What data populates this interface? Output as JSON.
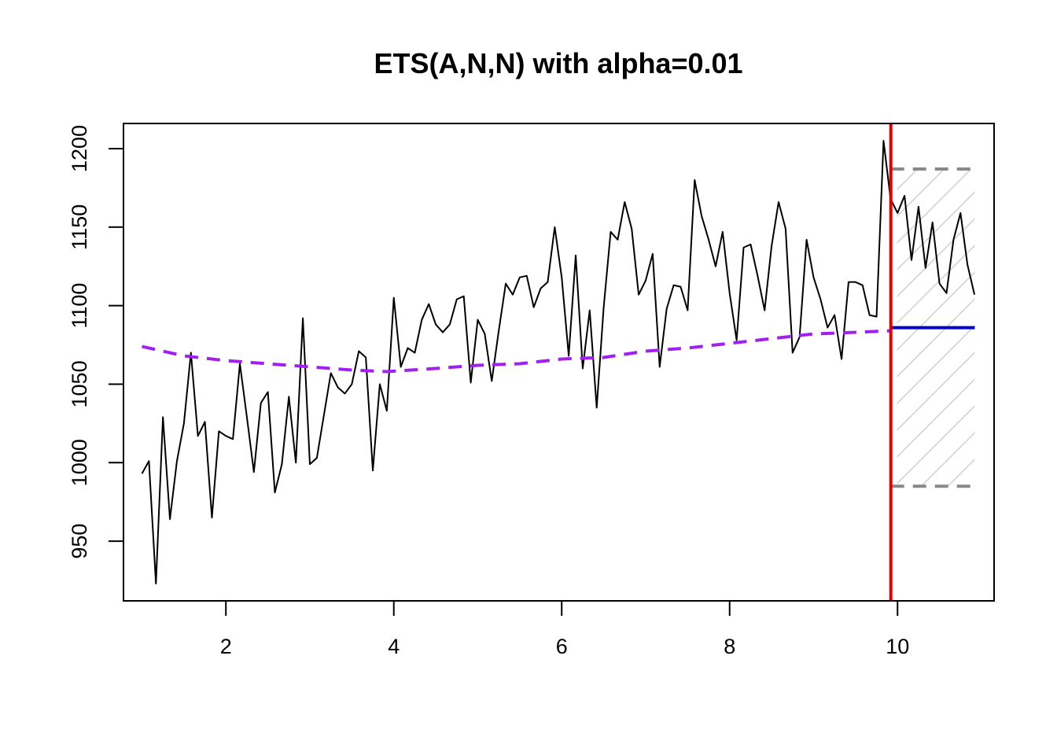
{
  "chart_data": {
    "type": "line",
    "title": "ETS(A,N,N) with alpha=0.01",
    "xlabel": "",
    "ylabel": "",
    "xlim": [
      0.78,
      11.15
    ],
    "ylim": [
      912,
      1216
    ],
    "x_ticks": [
      2,
      4,
      6,
      8,
      10
    ],
    "y_ticks": [
      950,
      1000,
      1050,
      1100,
      1150,
      1200
    ],
    "grid": false,
    "legend": "none",
    "colors": {
      "actuals": "#000000",
      "fitted": "#a020f0",
      "forecast": "#0000cd",
      "holdout_line": "#e00000",
      "interval": "#888888",
      "hatch": "#d0d0d0"
    },
    "series": [
      {
        "role": "actuals",
        "x_start": 1.0,
        "x_step": 0.083333,
        "values": [
          993,
          1001,
          923,
          1029,
          964,
          1001,
          1025,
          1070,
          1017,
          1026,
          965,
          1020,
          1017,
          1015,
          1063,
          1029,
          994,
          1038,
          1045,
          981,
          999,
          1042,
          1000,
          1092,
          999,
          1003,
          1030,
          1057,
          1048,
          1044,
          1050,
          1071,
          1067,
          995,
          1050,
          1033,
          1105,
          1061,
          1073,
          1070,
          1091,
          1101,
          1088,
          1083,
          1088,
          1104,
          1106,
          1051,
          1091,
          1082,
          1052,
          1084,
          1114,
          1107,
          1118,
          1119,
          1099,
          1111,
          1115,
          1150,
          1118,
          1068,
          1132,
          1060,
          1097,
          1035,
          1099,
          1147,
          1142,
          1166,
          1149,
          1107,
          1116,
          1133,
          1061,
          1098,
          1113,
          1112,
          1097,
          1180,
          1157,
          1142,
          1125,
          1147,
          1108,
          1078,
          1137,
          1139,
          1119,
          1097,
          1138,
          1166,
          1149,
          1070,
          1080,
          1142,
          1118,
          1104,
          1086,
          1094,
          1066,
          1115,
          1115,
          1113,
          1094,
          1093,
          1205,
          1168,
          1159,
          1170,
          1129,
          1163,
          1124,
          1153,
          1114,
          1108,
          1142,
          1159,
          1126,
          1107
        ]
      },
      {
        "role": "fitted",
        "x": [
          1.0,
          1.5,
          2.0,
          2.5,
          3.0,
          3.5,
          3.92,
          4.5,
          5.0,
          5.5,
          6.0,
          6.5,
          7.0,
          7.5,
          8.0,
          8.5,
          9.0,
          9.5,
          9.92
        ],
        "values": [
          1074,
          1068,
          1065,
          1063,
          1061,
          1059,
          1058,
          1060,
          1062,
          1063,
          1066,
          1067,
          1071,
          1073,
          1076,
          1079,
          1082,
          1083,
          1084
        ]
      },
      {
        "role": "forecast",
        "x": [
          9.92,
          10.92
        ],
        "values": [
          1086,
          1086
        ]
      },
      {
        "role": "upper",
        "x": [
          9.92,
          10.92
        ],
        "values": [
          1187,
          1187
        ]
      },
      {
        "role": "lower",
        "x": [
          9.92,
          10.92
        ],
        "values": [
          985,
          985
        ]
      }
    ],
    "holdout_x": 9.92
  }
}
